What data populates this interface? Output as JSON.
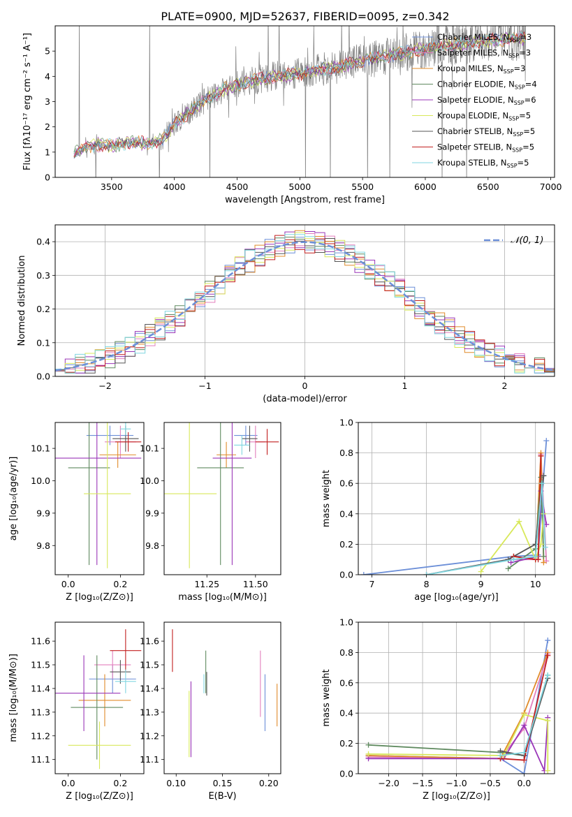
{
  "page_title": "PLATE=0900, MJD=52637, FIBERID=0095, z=0.342",
  "models": [
    {
      "name": "Chabrier MILES, N",
      "sub": "SSP",
      "tail": "=3",
      "color": "#6c8fd8"
    },
    {
      "name": "Salpeter MILES, N",
      "sub": "SSP",
      "tail": "=3",
      "color": "#e37fbd"
    },
    {
      "name": "Kroupa MILES, N",
      "sub": "SSP",
      "tail": "=3",
      "color": "#e08b2a"
    },
    {
      "name": "Chabrier ELODIE, N",
      "sub": "SSP",
      "tail": "=4",
      "color": "#5f8a5f"
    },
    {
      "name": "Salpeter ELODIE, N",
      "sub": "SSP",
      "tail": "=6",
      "color": "#9a36b8"
    },
    {
      "name": "Kroupa ELODIE, N",
      "sub": "SSP",
      "tail": "=5",
      "color": "#d8e85a"
    },
    {
      "name": "Chabrier STELIB, N",
      "sub": "SSP",
      "tail": "=5",
      "color": "#555555"
    },
    {
      "name": "Salpeter STELIB, N",
      "sub": "SSP",
      "tail": "=5",
      "color": "#c21f1f"
    },
    {
      "name": "Kroupa STELIB, N",
      "sub": "SSP",
      "tail": "=5",
      "color": "#7fd6e0"
    }
  ],
  "chart_data": [
    {
      "id": "spectrum",
      "type": "line",
      "xlabel": "wavelength [Angstrom, rest frame]",
      "ylabel": "Flux [fλ10⁻¹⁷ erg cm⁻² s⁻¹ A⁻¹]",
      "xlim": [
        3050,
        7030
      ],
      "ylim": [
        0,
        6
      ],
      "xticks": [
        3500,
        4000,
        4500,
        5000,
        5500,
        6000,
        6500,
        7000
      ],
      "yticks": [
        0,
        1,
        2,
        3,
        4,
        5
      ],
      "data_color": "#808080",
      "model_x": [
        3200,
        3300,
        3400,
        3500,
        3600,
        3700,
        3800,
        3900,
        4000,
        4100,
        4200,
        4300,
        4400,
        4500,
        4600,
        4700,
        4800,
        4900,
        5000,
        5100,
        5200,
        5300,
        5400,
        5500,
        5600,
        5700,
        5800,
        5900,
        6000,
        6100,
        6200,
        6300,
        6400,
        6500,
        6600,
        6700,
        6800
      ],
      "model_y": [
        0.95,
        1.2,
        1.3,
        1.25,
        1.35,
        1.4,
        1.3,
        1.5,
        2.1,
        2.5,
        2.9,
        3.2,
        3.5,
        3.7,
        3.8,
        3.9,
        4.0,
        4.05,
        4.1,
        4.2,
        4.3,
        4.35,
        4.5,
        4.6,
        4.7,
        4.8,
        4.9,
        5.0,
        5.1,
        5.2,
        5.25,
        5.3,
        5.35,
        5.4,
        5.45,
        5.5,
        5.5
      ],
      "legend_placement": "upper-right"
    },
    {
      "id": "residuals",
      "type": "histogram",
      "xlabel": "(data-model)/error",
      "ylabel": "Normed distribution",
      "xlim": [
        -2.5,
        2.5
      ],
      "ylim": [
        0,
        0.45
      ],
      "xticks": [
        -2,
        -1,
        0,
        1,
        2
      ],
      "yticks": [
        0.0,
        0.1,
        0.2,
        0.3,
        0.4
      ],
      "grid": true,
      "bin_edges": [
        -2.5,
        -2.4,
        -2.3,
        -2.2,
        -2.1,
        -2.0,
        -1.9,
        -1.8,
        -1.7,
        -1.6,
        -1.5,
        -1.4,
        -1.3,
        -1.2,
        -1.1,
        -1.0,
        -0.9,
        -0.8,
        -0.7,
        -0.6,
        -0.5,
        -0.4,
        -0.3,
        -0.2,
        -0.1,
        0.0,
        0.1,
        0.2,
        0.3,
        0.4,
        0.5,
        0.6,
        0.7,
        0.8,
        0.9,
        1.0,
        1.1,
        1.2,
        1.3,
        1.4,
        1.5,
        1.6,
        1.7,
        1.8,
        1.9,
        2.0,
        2.1,
        2.2,
        2.3,
        2.4,
        2.5
      ],
      "reference_curve": {
        "name": "𝒩(0, 1)",
        "color": "#6c8fd8",
        "dash": "dashed"
      },
      "legend_placement": "upper-right"
    },
    {
      "id": "age_vs_Z",
      "type": "errorbar",
      "xlabel": "Z [log₁₀(Z/Z⊙)]",
      "ylabel": "age  [log₁₀(age/yr)]",
      "xlim": [
        -0.05,
        0.29
      ],
      "ylim": [
        9.71,
        10.18
      ],
      "xticks": [
        0.0,
        0.2
      ],
      "yticks": [
        9.8,
        9.9,
        10.0,
        10.1
      ],
      "points": [
        {
          "x": 0.16,
          "y": 10.14,
          "xerr": 0.09,
          "yerr": 0.03
        },
        {
          "x": 0.2,
          "y": 10.12,
          "xerr": 0.06,
          "yerr": 0.05
        },
        {
          "x": 0.19,
          "y": 10.08,
          "xerr": 0.07,
          "yerr": 0.04
        },
        {
          "x": 0.08,
          "y": 10.04,
          "xerr": 0.08,
          "yerr": 0.3
        },
        {
          "x": 0.11,
          "y": 10.07,
          "xerr": 0.17,
          "yerr": 0.33
        },
        {
          "x": 0.15,
          "y": 9.96,
          "xerr": 0.09,
          "yerr": 0.23
        },
        {
          "x": 0.22,
          "y": 10.13,
          "xerr": 0.05,
          "yerr": 0.04
        },
        {
          "x": 0.23,
          "y": 10.12,
          "xerr": 0.05,
          "yerr": 0.03
        },
        {
          "x": 0.22,
          "y": 10.16,
          "xerr": 0.02,
          "yerr": 0.02
        }
      ]
    },
    {
      "id": "age_vs_mass",
      "type": "errorbar",
      "xlabel": "mass [log₁₀(M/M⊙)]",
      "ylabel": "",
      "xlim": [
        11.03,
        11.63
      ],
      "ylim": [
        9.71,
        10.18
      ],
      "xticks": [
        11.25,
        11.5
      ],
      "yticks": [
        9.8,
        9.9,
        10.0,
        10.1
      ],
      "points": [
        {
          "x": 11.45,
          "y": 10.14,
          "xerr": 0.06,
          "yerr": 0.03
        },
        {
          "x": 11.5,
          "y": 10.12,
          "xerr": 0.05,
          "yerr": 0.05
        },
        {
          "x": 11.35,
          "y": 10.08,
          "xerr": 0.05,
          "yerr": 0.04
        },
        {
          "x": 11.32,
          "y": 10.04,
          "xerr": 0.12,
          "yerr": 0.3
        },
        {
          "x": 11.38,
          "y": 10.07,
          "xerr": 0.1,
          "yerr": 0.33
        },
        {
          "x": 11.16,
          "y": 9.96,
          "xerr": 0.14,
          "yerr": 0.23
        },
        {
          "x": 11.47,
          "y": 10.13,
          "xerr": 0.04,
          "yerr": 0.04
        },
        {
          "x": 11.56,
          "y": 10.12,
          "xerr": 0.06,
          "yerr": 0.04
        },
        {
          "x": 11.43,
          "y": 10.11,
          "xerr": 0.04,
          "yerr": 0.03
        }
      ]
    },
    {
      "id": "massweight_vs_age",
      "type": "line",
      "xlabel": "age  [log₁₀(age/yr)]",
      "ylabel": "mass weight",
      "xlim": [
        6.75,
        10.35
      ],
      "ylim": [
        0,
        1.0
      ],
      "xticks": [
        7,
        8,
        9,
        10
      ],
      "yticks": [
        0.0,
        0.2,
        0.4,
        0.6,
        0.8,
        1.0
      ],
      "grid": true,
      "series": [
        {
          "model": 0,
          "x": [
            6.85,
            9.6,
            10.05,
            10.15,
            10.2
          ],
          "y": [
            0.0,
            0.12,
            0.13,
            0.65,
            0.88
          ]
        },
        {
          "model": 1,
          "x": [
            9.55,
            10.0,
            10.1,
            10.2
          ],
          "y": [
            0.1,
            0.1,
            0.79,
            0.09
          ]
        },
        {
          "model": 2,
          "x": [
            9.6,
            10.0,
            10.1,
            10.15
          ],
          "y": [
            0.12,
            0.1,
            0.8,
            0.08
          ]
        },
        {
          "model": 3,
          "x": [
            9.5,
            10.0,
            10.1,
            10.15
          ],
          "y": [
            0.04,
            0.17,
            0.64,
            0.12
          ]
        },
        {
          "model": 4,
          "x": [
            9.55,
            10.05,
            10.1,
            10.2
          ],
          "y": [
            0.08,
            0.12,
            0.55,
            0.33
          ]
        },
        {
          "model": 5,
          "x": [
            9.0,
            9.7,
            10.0,
            10.1,
            10.15
          ],
          "y": [
            0.02,
            0.35,
            0.1,
            0.2,
            0.4
          ]
        },
        {
          "model": 6,
          "x": [
            8.0,
            9.5,
            10.0,
            10.15
          ],
          "y": [
            0.0,
            0.1,
            0.2,
            0.65
          ]
        },
        {
          "model": 7,
          "x": [
            9.6,
            10.0,
            10.05,
            10.1
          ],
          "y": [
            0.12,
            0.1,
            0.1,
            0.78
          ]
        },
        {
          "model": 8,
          "x": [
            8.0,
            9.6,
            10.0,
            10.12,
            10.18
          ],
          "y": [
            0.0,
            0.1,
            0.12,
            0.6,
            0.18
          ]
        }
      ]
    },
    {
      "id": "mass_vs_Z",
      "type": "errorbar",
      "xlabel": "Z [log₁₀(Z/Z⊙)]",
      "ylabel": "mass [log₁₀(M/M⊙)]",
      "xlim": [
        -0.05,
        0.29
      ],
      "ylim": [
        11.04,
        11.68
      ],
      "xticks": [
        0.0,
        0.2
      ],
      "yticks": [
        11.1,
        11.2,
        11.3,
        11.4,
        11.5,
        11.6
      ],
      "points": [
        {
          "x": 0.17,
          "y": 11.44,
          "xerr": 0.09,
          "yerr": 0.06
        },
        {
          "x": 0.17,
          "y": 11.5,
          "xerr": 0.07,
          "yerr": 0.06
        },
        {
          "x": 0.14,
          "y": 11.35,
          "xerr": 0.1,
          "yerr": 0.11
        },
        {
          "x": 0.11,
          "y": 11.32,
          "xerr": 0.1,
          "yerr": 0.22
        },
        {
          "x": 0.06,
          "y": 11.38,
          "xerr": 0.14,
          "yerr": 0.16
        },
        {
          "x": 0.12,
          "y": 11.16,
          "xerr": 0.12,
          "yerr": 0.1
        },
        {
          "x": 0.2,
          "y": 11.47,
          "xerr": 0.04,
          "yerr": 0.05
        },
        {
          "x": 0.22,
          "y": 11.56,
          "xerr": 0.06,
          "yerr": 0.09
        },
        {
          "x": 0.22,
          "y": 11.43,
          "xerr": 0.04,
          "yerr": 0.05
        }
      ]
    },
    {
      "id": "mass_vs_ebv",
      "type": "errorbar",
      "xlabel": "E(B-V)",
      "ylabel": "",
      "xlim": [
        0.087,
        0.213
      ],
      "ylim": [
        11.04,
        11.68
      ],
      "xticks": [
        0.1,
        0.15,
        0.2
      ],
      "yticks": [
        11.1,
        11.2,
        11.3,
        11.4,
        11.5,
        11.6
      ],
      "points": [
        {
          "x": 0.196,
          "y": 11.34,
          "yerr": 0.12
        },
        {
          "x": 0.191,
          "y": 11.42,
          "yerr": 0.14
        },
        {
          "x": 0.209,
          "y": 11.33,
          "yerr": 0.09
        },
        {
          "x": 0.132,
          "y": 11.47,
          "yerr": 0.09
        },
        {
          "x": 0.116,
          "y": 11.27,
          "yerr": 0.16
        },
        {
          "x": 0.114,
          "y": 11.25,
          "yerr": 0.14
        },
        {
          "x": 0.133,
          "y": 11.42,
          "yerr": 0.05
        },
        {
          "x": 0.096,
          "y": 11.56,
          "yerr": 0.09
        },
        {
          "x": 0.13,
          "y": 11.42,
          "yerr": 0.04
        }
      ]
    },
    {
      "id": "massweight_vs_Z",
      "type": "line",
      "xlabel": "Z [log₁₀(Z/Z⊙)]",
      "ylabel": "mass weight",
      "xlim": [
        -2.45,
        0.45
      ],
      "ylim": [
        0,
        1.0
      ],
      "xticks": [
        -2.0,
        -1.5,
        -1.0,
        -0.5,
        0.0
      ],
      "yticks": [
        0.0,
        0.2,
        0.4,
        0.6,
        0.8,
        1.0
      ],
      "grid": true,
      "series": [
        {
          "model": 0,
          "x": [
            -2.3,
            -0.35,
            0.0,
            0.35
          ],
          "y": [
            0.12,
            0.1,
            0.0,
            0.88
          ]
        },
        {
          "model": 1,
          "x": [
            -2.3,
            -0.35,
            0.0,
            0.35
          ],
          "y": [
            0.11,
            0.1,
            0.3,
            0.79
          ]
        },
        {
          "model": 2,
          "x": [
            -2.3,
            -0.35,
            0.0,
            0.35
          ],
          "y": [
            0.12,
            0.1,
            0.4,
            0.8
          ]
        },
        {
          "model": 3,
          "x": [
            -2.3,
            -0.35,
            0.0,
            0.35
          ],
          "y": [
            0.19,
            0.14,
            0.12,
            0.65
          ]
        },
        {
          "model": 4,
          "x": [
            -2.3,
            -0.3,
            0.0,
            0.3,
            0.35
          ],
          "y": [
            0.1,
            0.1,
            0.32,
            0.02,
            0.37
          ]
        },
        {
          "model": 5,
          "x": [
            -2.3,
            -0.3,
            0.0,
            0.35,
            0.35
          ],
          "y": [
            0.13,
            0.12,
            0.39,
            0.35,
            0.02
          ]
        },
        {
          "model": 6,
          "x": [
            -0.35,
            0.0,
            0.35
          ],
          "y": [
            0.15,
            0.12,
            0.63
          ]
        },
        {
          "model": 7,
          "x": [
            -0.35,
            0.0,
            0.35
          ],
          "y": [
            0.1,
            0.09,
            0.78
          ]
        },
        {
          "model": 8,
          "x": [
            -0.35,
            0.0,
            0.35
          ],
          "y": [
            0.12,
            0.14,
            0.65
          ]
        }
      ]
    }
  ]
}
